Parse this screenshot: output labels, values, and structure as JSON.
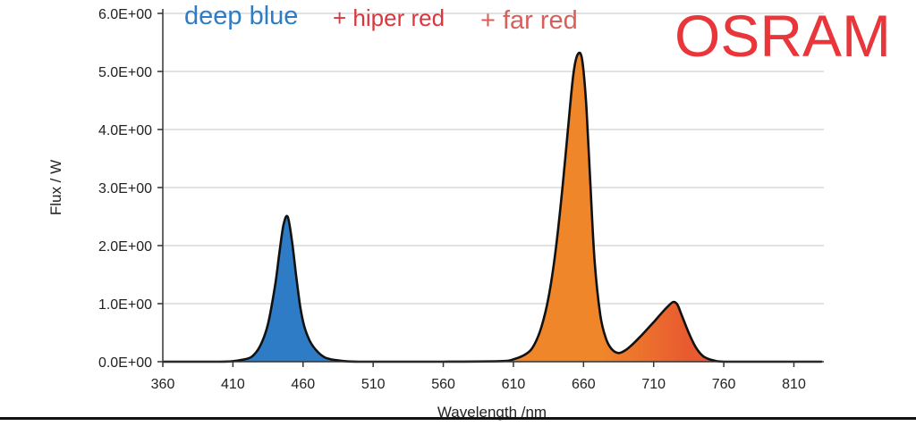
{
  "colors": {
    "blue": "#2f7cc6",
    "orange": "#f0862a",
    "red_orange": "#e85a30",
    "annotation_red": "#d9363e",
    "annotation_far_red": "#d9605a",
    "brand_red": "#e8363a",
    "grid": "#d9d9d9"
  },
  "annotations": {
    "deep_blue": "deep blue",
    "hiper_red": "+ hiper red",
    "far_red": "+ far red"
  },
  "brand": "OSRAM",
  "chart_data": {
    "type": "area",
    "title": "",
    "xlabel": "Wavelength /nm",
    "ylabel": "Flux / W",
    "xlim": [
      360,
      830
    ],
    "ylim": [
      0,
      6
    ],
    "x_ticks": [
      360,
      410,
      460,
      510,
      560,
      610,
      660,
      710,
      760,
      810
    ],
    "x_tick_labels": [
      "360",
      "410",
      "460",
      "510",
      "560",
      "610",
      "660",
      "710",
      "760",
      "810"
    ],
    "y_ticks": [
      0,
      1,
      2,
      3,
      4,
      5,
      6
    ],
    "y_tick_labels": [
      "0.0E+00",
      "1.0E+00",
      "2.0E+00",
      "3.0E+00",
      "4.0E+00",
      "5.0E+00",
      "6.0E+00"
    ],
    "grid": "horizontal",
    "series": [
      {
        "x": [
          360,
          400,
          410,
          420,
          425,
          430,
          435,
          440,
          443,
          446,
          449,
          452,
          455,
          458,
          461,
          465,
          470,
          475,
          480,
          490,
          500,
          520,
          560,
          600,
          610,
          620,
          625,
          630,
          635,
          640,
          645,
          650,
          653,
          656,
          659,
          662,
          665,
          668,
          672,
          676,
          680,
          685,
          690,
          695,
          700,
          705,
          710,
          715,
          720,
          724,
          727,
          730,
          735,
          740,
          745,
          750,
          755,
          760,
          770,
          800,
          830
        ],
        "y": [
          0,
          0,
          0.01,
          0.05,
          0.12,
          0.3,
          0.65,
          1.3,
          1.85,
          2.35,
          2.5,
          2.1,
          1.5,
          0.95,
          0.6,
          0.35,
          0.18,
          0.08,
          0.04,
          0.01,
          0,
          0,
          0,
          0.01,
          0.04,
          0.15,
          0.3,
          0.6,
          1.1,
          1.9,
          3.0,
          4.3,
          5.0,
          5.3,
          5.2,
          4.4,
          3.0,
          1.7,
          0.8,
          0.4,
          0.22,
          0.15,
          0.2,
          0.3,
          0.42,
          0.55,
          0.68,
          0.82,
          0.95,
          1.03,
          0.98,
          0.8,
          0.5,
          0.25,
          0.1,
          0.04,
          0.01,
          0,
          0,
          0,
          0
        ]
      }
    ]
  }
}
